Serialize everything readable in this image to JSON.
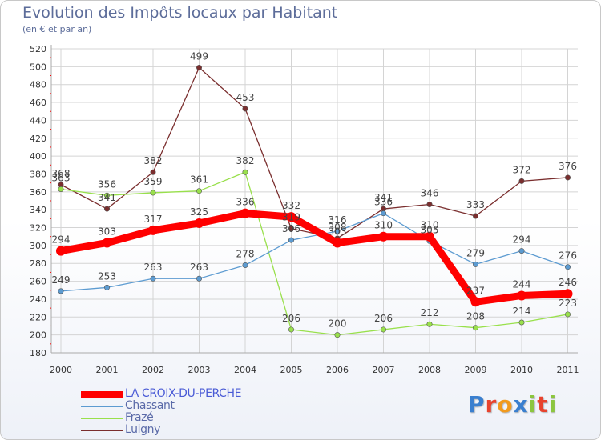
{
  "chart_data": {
    "type": "line",
    "title": "Evolution des Impôts locaux par Habitant",
    "subtitle": "(en € et par an)",
    "xlabel": "",
    "ylabel": "",
    "ylim": [
      180,
      520
    ],
    "yticks": [
      180,
      200,
      220,
      240,
      260,
      280,
      300,
      320,
      340,
      360,
      380,
      400,
      420,
      440,
      460,
      480,
      500,
      520
    ],
    "categories": [
      "2000",
      "2001",
      "2002",
      "2003",
      "2004",
      "2005",
      "2006",
      "2007",
      "2008",
      "2009",
      "2010",
      "2011"
    ],
    "grid": true,
    "legend_position": "bottom-left",
    "series": [
      {
        "name": "LA CROIX-DU-PERCHE",
        "color": "#ff0000",
        "values": [
          294,
          303,
          317,
          325,
          336,
          332,
          303,
          310,
          310,
          237,
          244,
          246
        ],
        "labels": [
          "294",
          "303",
          "317",
          "325",
          "336",
          "332",
          "303",
          "310",
          "310",
          "237",
          "244",
          "246"
        ]
      },
      {
        "name": "Chassant",
        "color": "#5c9bd1",
        "values": [
          249,
          253,
          263,
          263,
          278,
          306,
          316,
          336,
          305,
          279,
          294,
          276
        ],
        "labels": [
          "249",
          "253",
          "263",
          "263",
          "278",
          "306",
          "316",
          "336",
          "305",
          "279",
          "294",
          "276"
        ]
      },
      {
        "name": "Frazé",
        "color": "#99e04c",
        "values": [
          363,
          356,
          359,
          361,
          382,
          206,
          200,
          206,
          212,
          208,
          214,
          223
        ],
        "labels": [
          "363",
          "356",
          "359",
          "361",
          "382",
          "206",
          "200",
          "206",
          "212",
          "208",
          "214",
          "223"
        ]
      },
      {
        "name": "Luigny",
        "color": "#7a2e2e",
        "values": [
          368,
          341,
          382,
          499,
          453,
          319,
          308,
          341,
          346,
          333,
          372,
          376
        ],
        "labels": [
          "368",
          "341",
          "382",
          "499",
          "453",
          "319",
          "308",
          "341",
          "346",
          "333",
          "372",
          "376"
        ]
      }
    ]
  },
  "logo": {
    "text": "Proxiti",
    "letter_colors": [
      "#3a7fcf",
      "#e8432e",
      "#f29a1d",
      "#3a7fcf",
      "#8cc63f",
      "#e8432e",
      "#8cc63f"
    ]
  }
}
